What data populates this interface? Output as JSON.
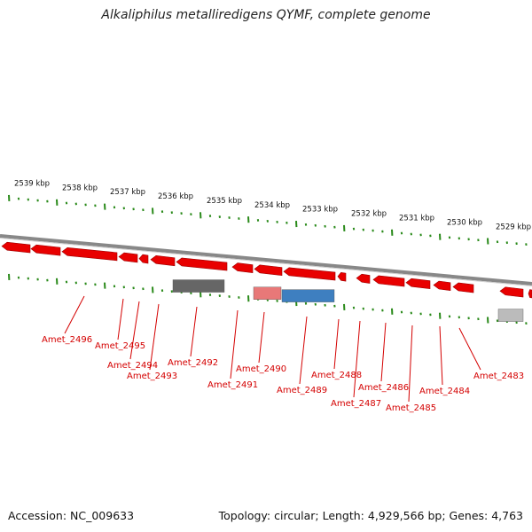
{
  "title": "Alkaliphilus metalliredigens QYMF, complete genome",
  "footer": {
    "accession": "Accession: NC_009633",
    "stats": "Topology: circular; Length: 4,929,566 bp; Genes: 4,763"
  },
  "colors": {
    "gene_forward": "#e80000",
    "label": "#d40000",
    "tick": "#2a8a1a",
    "backbone": "#888888",
    "dark_feature": "#666666",
    "pink_feature": "#e87878",
    "blue_feature": "#3e7fc0",
    "light_feature": "#bbbbbb"
  },
  "kbp_labels": [
    "2539 kbp",
    "2538 kbp",
    "2537 kbp",
    "2536 kbp",
    "2535 kbp",
    "2534 kbp",
    "2533 kbp",
    "2532 kbp",
    "2531 kbp",
    "2530 kbp",
    "2529 kbp"
  ],
  "gene_labels": [
    "Amet_2496",
    "Amet_2495",
    "Amet_2494",
    "Amet_2493",
    "Amet_2492",
    "Amet_2491",
    "Amet_2490",
    "Amet_2489",
    "Amet_2488",
    "Amet_2487",
    "Amet_2486",
    "Amet_2485",
    "Amet_2484",
    "Amet_2483"
  ]
}
